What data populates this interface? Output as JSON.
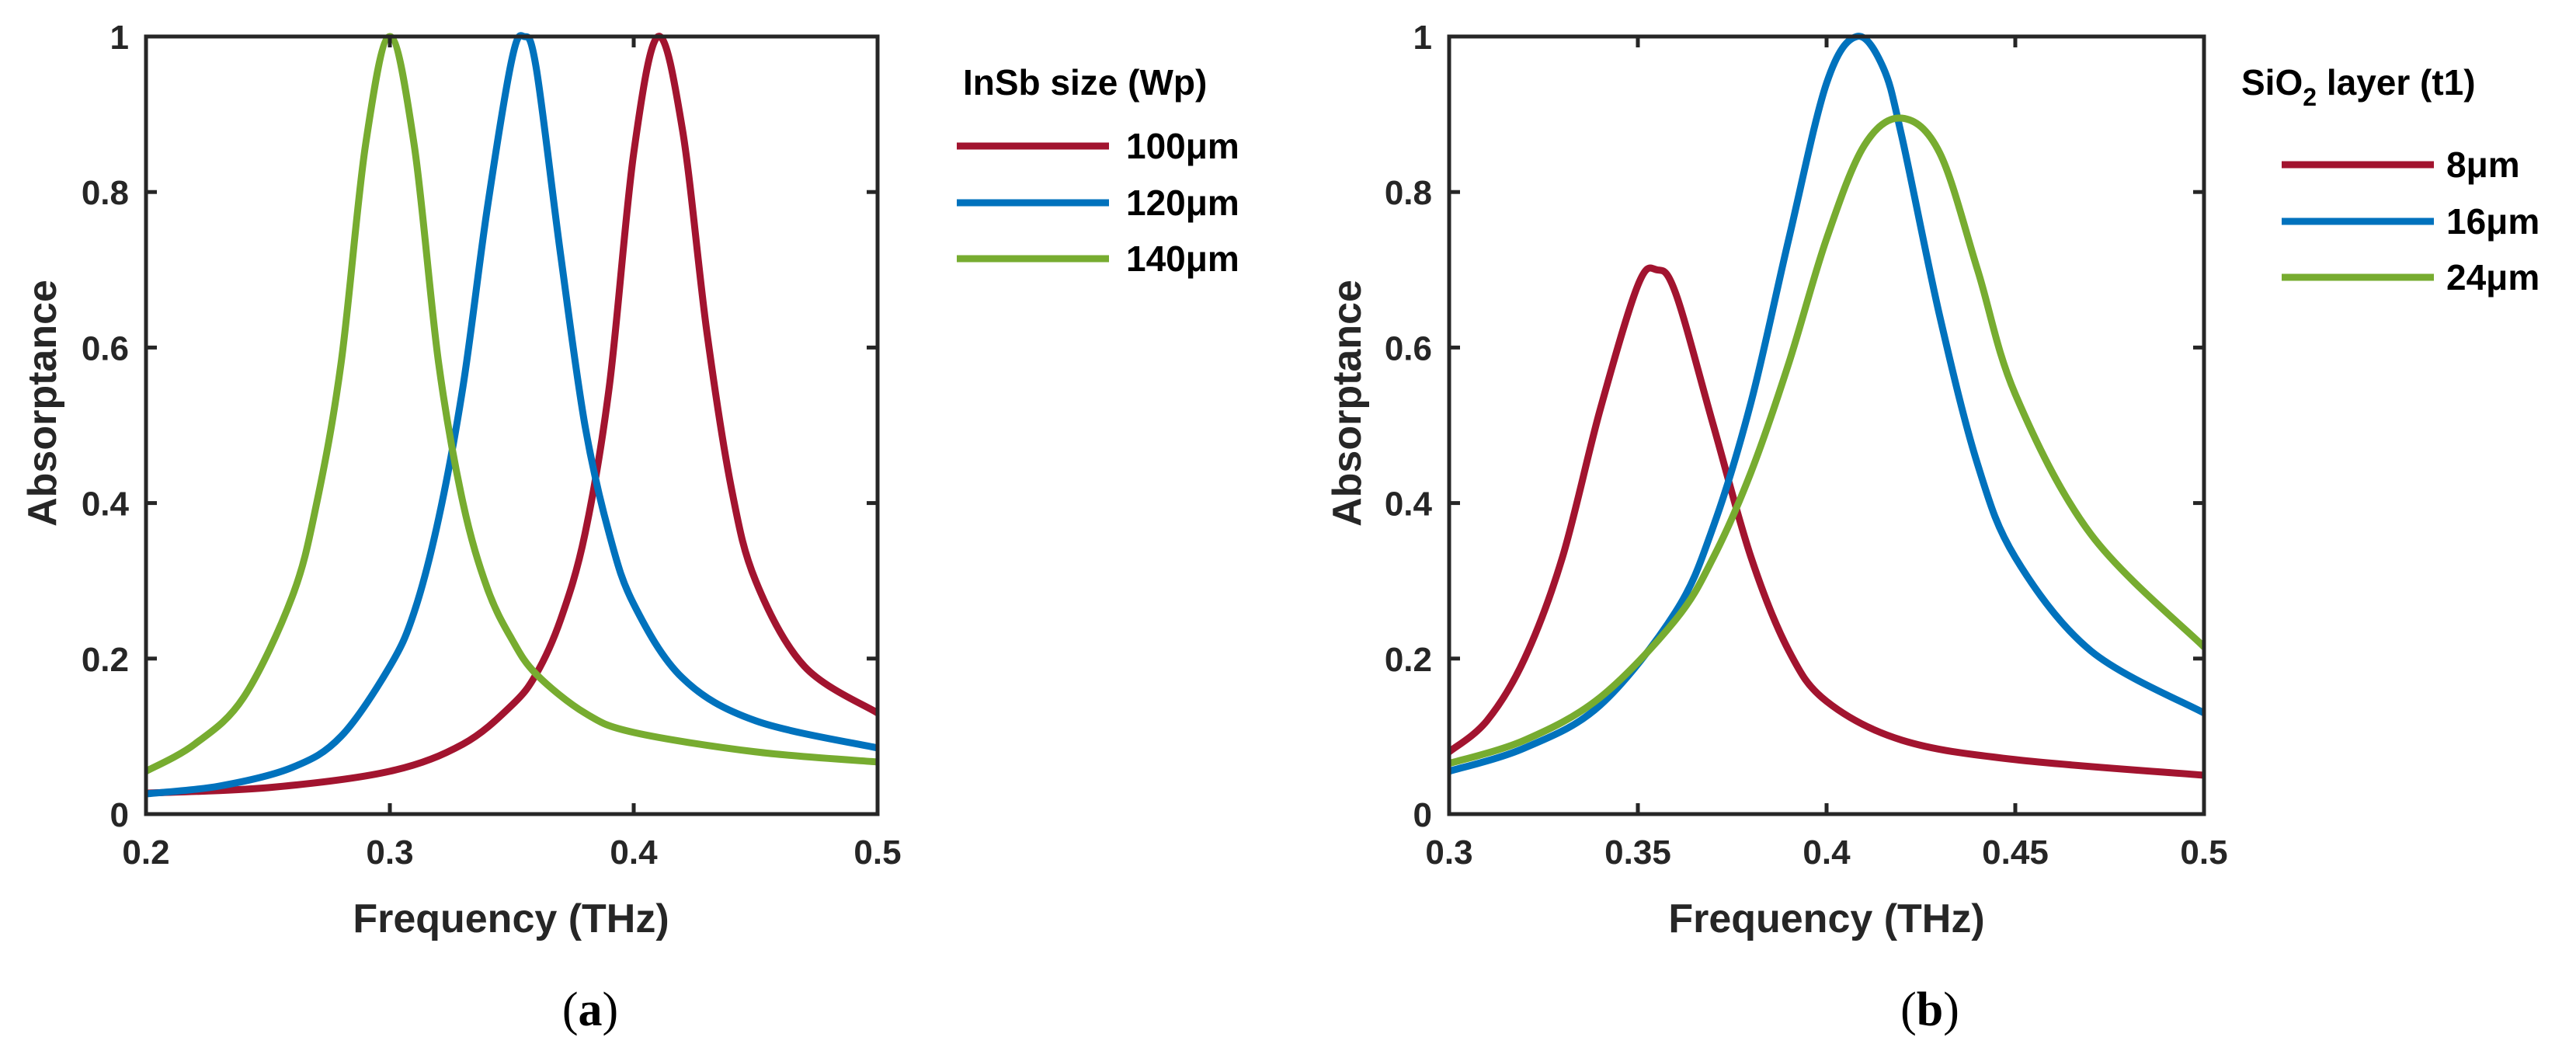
{
  "chart_data": [
    {
      "type": "line",
      "panel_label": "a",
      "xlabel": "Frequency (THz)",
      "ylabel": "Absorptance",
      "xlim": [
        0.2,
        0.5
      ],
      "ylim": [
        0,
        1
      ],
      "xticks": [
        0.2,
        0.3,
        0.4,
        0.5
      ],
      "yticks": [
        0,
        0.2,
        0.4,
        0.6,
        0.8,
        1
      ],
      "xtick_labels": [
        "0.2",
        "0.3",
        "0.4",
        "0.5"
      ],
      "ytick_labels": [
        "0",
        "0.2",
        "0.4",
        "0.6",
        "0.8",
        "1"
      ],
      "legend_title": "InSb size (Wp)",
      "legend_position": "outside-right",
      "series": [
        {
          "name": "100",
          "unit": "μm",
          "color": "#A2142F",
          "x": [
            0.2,
            0.25,
            0.3,
            0.33,
            0.35,
            0.36,
            0.37,
            0.38,
            0.39,
            0.4,
            0.41,
            0.42,
            0.43,
            0.44,
            0.45,
            0.47,
            0.5
          ],
          "y": [
            0.027,
            0.034,
            0.055,
            0.09,
            0.14,
            0.18,
            0.25,
            0.36,
            0.55,
            0.85,
            1.0,
            0.88,
            0.62,
            0.42,
            0.3,
            0.19,
            0.13
          ]
        },
        {
          "name": "120",
          "unit": "μm",
          "color": "#0072BD",
          "x": [
            0.2,
            0.23,
            0.26,
            0.28,
            0.3,
            0.31,
            0.32,
            0.33,
            0.34,
            0.35,
            0.355,
            0.36,
            0.37,
            0.38,
            0.39,
            0.4,
            0.42,
            0.45,
            0.5
          ],
          "y": [
            0.026,
            0.036,
            0.06,
            0.1,
            0.19,
            0.26,
            0.38,
            0.55,
            0.78,
            0.97,
            1.0,
            0.96,
            0.72,
            0.5,
            0.36,
            0.27,
            0.175,
            0.12,
            0.085
          ]
        },
        {
          "name": "140",
          "unit": "μm",
          "color": "#77AC30",
          "x": [
            0.2,
            0.22,
            0.24,
            0.26,
            0.27,
            0.28,
            0.29,
            0.3,
            0.31,
            0.32,
            0.33,
            0.34,
            0.35,
            0.36,
            0.38,
            0.4,
            0.45,
            0.5
          ],
          "y": [
            0.055,
            0.09,
            0.15,
            0.28,
            0.4,
            0.58,
            0.86,
            1.0,
            0.86,
            0.58,
            0.4,
            0.29,
            0.225,
            0.18,
            0.13,
            0.105,
            0.08,
            0.067
          ]
        }
      ]
    },
    {
      "type": "line",
      "panel_label": "b",
      "xlabel": "Frequency (THz)",
      "ylabel": "Absorptance",
      "xlim": [
        0.3,
        0.5
      ],
      "ylim": [
        0,
        1
      ],
      "xticks": [
        0.3,
        0.35,
        0.4,
        0.45,
        0.5
      ],
      "yticks": [
        0,
        0.2,
        0.4,
        0.6,
        0.8,
        1
      ],
      "xtick_labels": [
        "0.3",
        "0.35",
        "0.4",
        "0.45",
        "0.5"
      ],
      "ytick_labels": [
        "0",
        "0.2",
        "0.4",
        "0.6",
        "0.8",
        "1"
      ],
      "legend_title_main": "SiO",
      "legend_title_sub": "2",
      "legend_title_rest": " layer (t1)",
      "legend_position": "outside-right",
      "series": [
        {
          "name": "8",
          "unit": "μm",
          "color": "#A2142F",
          "x": [
            0.3,
            0.31,
            0.32,
            0.33,
            0.34,
            0.35,
            0.355,
            0.36,
            0.37,
            0.38,
            0.39,
            0.4,
            0.42,
            0.45,
            0.5
          ],
          "y": [
            0.08,
            0.12,
            0.2,
            0.33,
            0.52,
            0.68,
            0.7,
            0.67,
            0.5,
            0.33,
            0.21,
            0.145,
            0.095,
            0.07,
            0.05
          ]
        },
        {
          "name": "16",
          "unit": "μm",
          "color": "#0072BD",
          "x": [
            0.3,
            0.32,
            0.34,
            0.36,
            0.37,
            0.38,
            0.39,
            0.4,
            0.408,
            0.415,
            0.42,
            0.43,
            0.44,
            0.45,
            0.47,
            0.5
          ],
          "y": [
            0.055,
            0.085,
            0.14,
            0.26,
            0.37,
            0.53,
            0.74,
            0.94,
            1.0,
            0.96,
            0.87,
            0.64,
            0.45,
            0.33,
            0.21,
            0.13
          ]
        },
        {
          "name": "24",
          "unit": "μm",
          "color": "#77AC30",
          "x": [
            0.3,
            0.32,
            0.34,
            0.36,
            0.37,
            0.38,
            0.39,
            0.4,
            0.41,
            0.42,
            0.43,
            0.44,
            0.45,
            0.47,
            0.5
          ],
          "y": [
            0.065,
            0.095,
            0.15,
            0.25,
            0.33,
            0.44,
            0.58,
            0.74,
            0.86,
            0.895,
            0.85,
            0.7,
            0.54,
            0.36,
            0.215
          ]
        }
      ]
    }
  ]
}
